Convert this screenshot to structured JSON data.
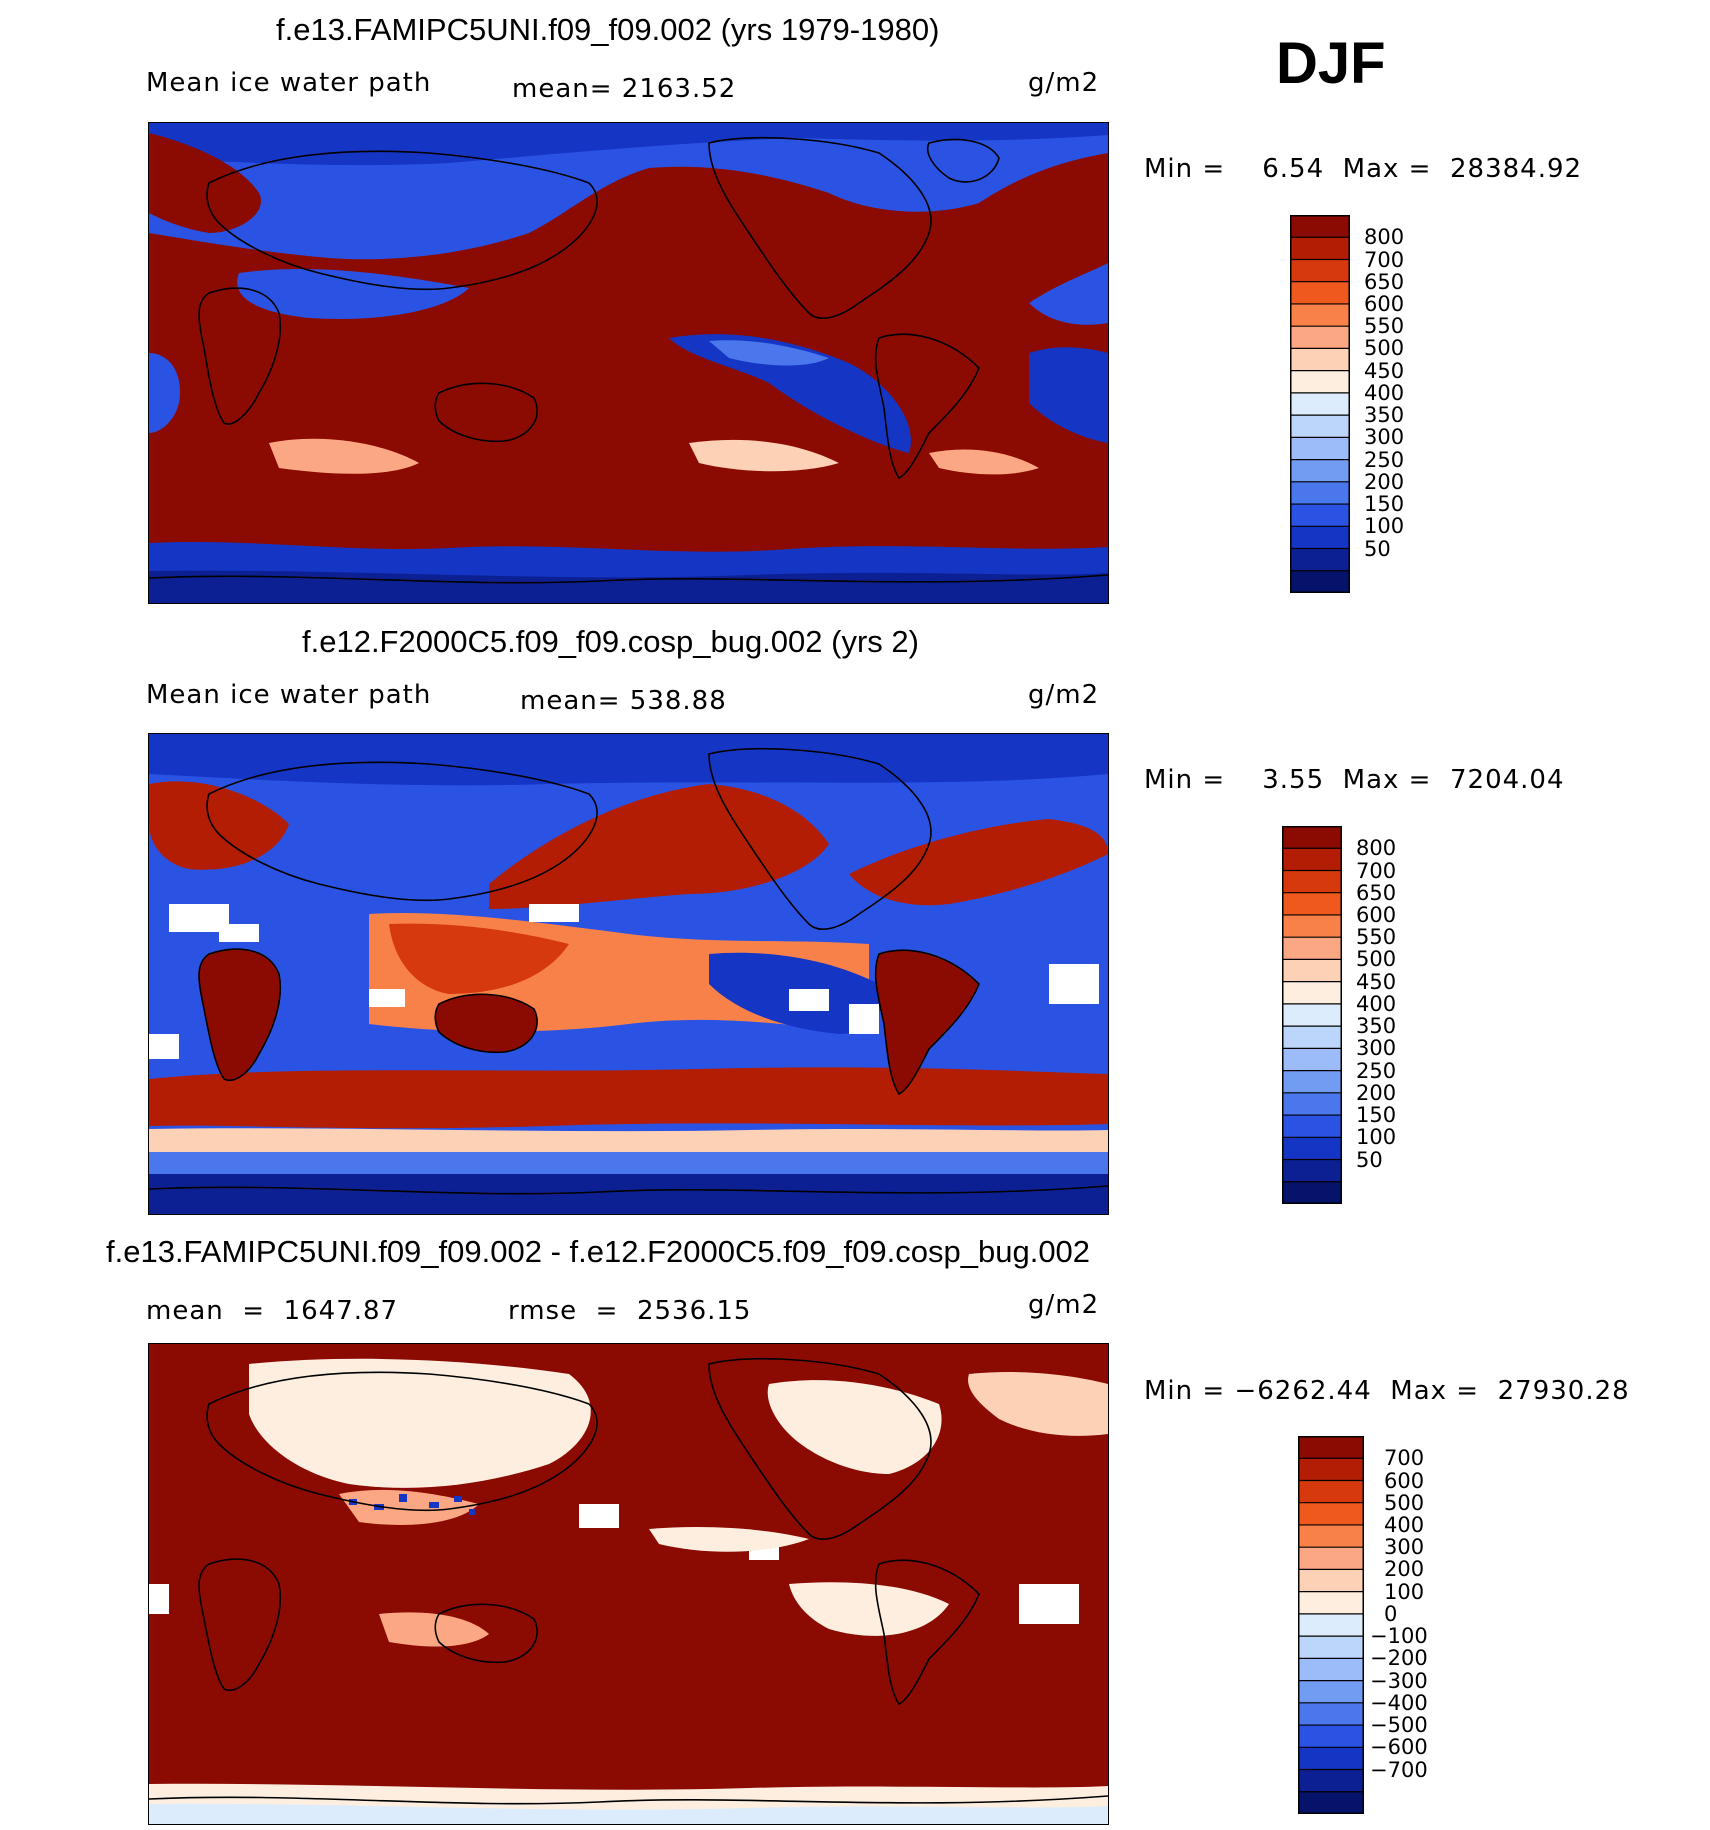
{
  "season": "DJF",
  "panels": [
    {
      "title": "f.e13.FAMIPC5UNI.f09_f09.002 (yrs 1979-1980)",
      "left_label": "Mean ice water path",
      "center_label": "mean= 2163.52",
      "units": "g/m2",
      "minmax": "Min =    6.54  Max =  28384.92",
      "colorbar": {
        "colors": [
          "#8b0a02",
          "#b31d04",
          "#d6390d",
          "#f0591d",
          "#f8814a",
          "#fca783",
          "#fdd1b5",
          "#fdeee0",
          "#dcecfc",
          "#bcd6fb",
          "#9bbcf8",
          "#729cf2",
          "#4a78ec",
          "#2a53e4",
          "#1535c4",
          "#0c2094",
          "#06136a"
        ],
        "labels": [
          "800",
          "700",
          "650",
          "600",
          "550",
          "500",
          "450",
          "400",
          "350",
          "300",
          "250",
          "200",
          "150",
          "100",
          "50"
        ]
      }
    },
    {
      "title": "f.e12.F2000C5.f09_f09.cosp_bug.002 (yrs 2)",
      "left_label": "Mean ice water path",
      "center_label": "mean= 538.88",
      "units": "g/m2",
      "minmax": "Min =    3.55  Max =  7204.04",
      "colorbar": {
        "colors": [
          "#8b0a02",
          "#b31d04",
          "#d6390d",
          "#f0591d",
          "#f8814a",
          "#fca783",
          "#fdd1b5",
          "#fdeee0",
          "#dcecfc",
          "#bcd6fb",
          "#9bbcf8",
          "#729cf2",
          "#4a78ec",
          "#2a53e4",
          "#1535c4",
          "#0c2094",
          "#06136a"
        ],
        "labels": [
          "800",
          "700",
          "650",
          "600",
          "550",
          "500",
          "450",
          "400",
          "350",
          "300",
          "250",
          "200",
          "150",
          "100",
          "50"
        ]
      }
    },
    {
      "title": "f.e13.FAMIPC5UNI.f09_f09.002 - f.e12.F2000C5.f09_f09.cosp_bug.002",
      "left_label": "mean  =  1647.87",
      "center_label": "rmse  =  2536.15",
      "units": "g/m2",
      "minmax": "Min = −6262.44  Max =  27930.28",
      "colorbar": {
        "colors": [
          "#8b0a02",
          "#b31d04",
          "#d6390d",
          "#f0591d",
          "#f8814a",
          "#fca783",
          "#fdd1b5",
          "#fdeee0",
          "#dcecfc",
          "#bcd6fb",
          "#9bbcf8",
          "#729cf2",
          "#4a78ec",
          "#2a53e4",
          "#1535c4",
          "#0c2094",
          "#06136a"
        ],
        "labels": [
          "700",
          "600",
          "500",
          "400",
          "300",
          "200",
          "100",
          "0",
          "−100",
          "−200",
          "−300",
          "−400",
          "−500",
          "−600",
          "−700"
        ]
      }
    }
  ]
}
